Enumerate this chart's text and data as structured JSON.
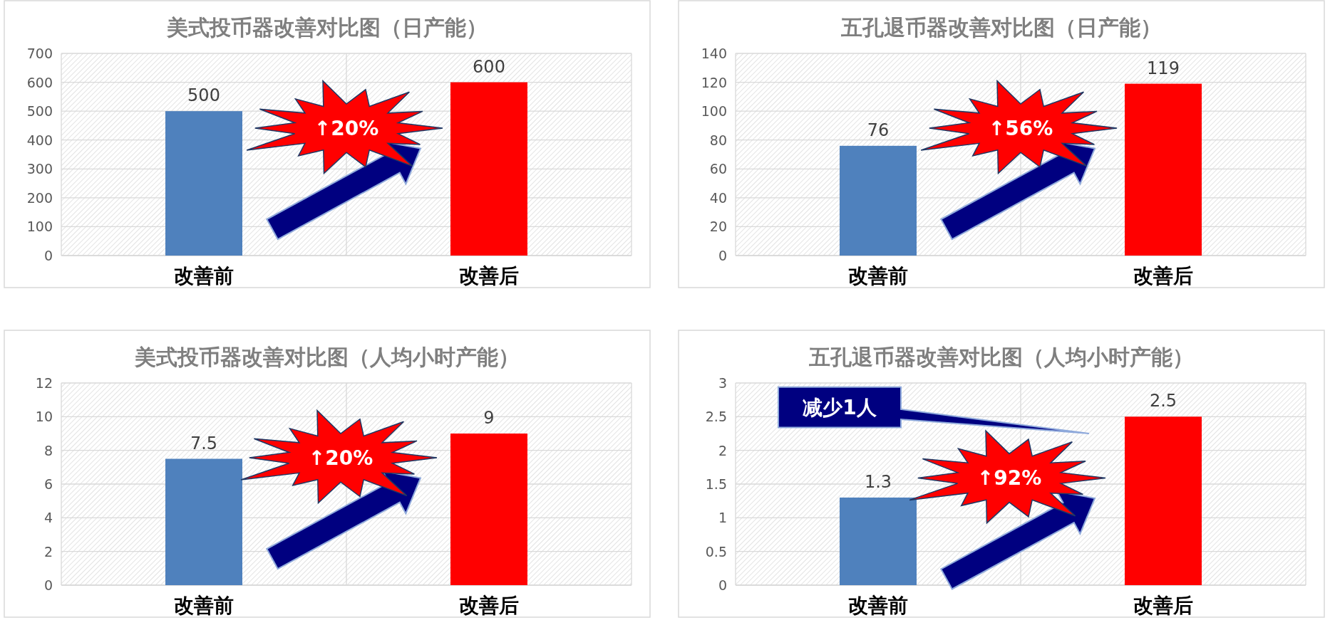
{
  "chart_data": [
    {
      "type": "bar",
      "title": "美式投币器改善对比图（日产能）",
      "categories": [
        "改善前",
        "改善后"
      ],
      "values": [
        500,
        600
      ],
      "colors": [
        "#4f81bd",
        "#ff0000"
      ],
      "ylim": [
        0,
        700
      ],
      "yticks": [
        0,
        100,
        200,
        300,
        400,
        500,
        600,
        700
      ],
      "grid": true,
      "data_labels": true,
      "annotations": [
        "↑20%"
      ]
    },
    {
      "type": "bar",
      "title": "五孔退币器改善对比图（日产能）",
      "categories": [
        "改善前",
        "改善后"
      ],
      "values": [
        76,
        119
      ],
      "colors": [
        "#4f81bd",
        "#ff0000"
      ],
      "ylim": [
        0,
        140
      ],
      "yticks": [
        0,
        20,
        40,
        60,
        80,
        100,
        120,
        140
      ],
      "grid": true,
      "data_labels": true,
      "annotations": [
        "↑56%"
      ]
    },
    {
      "type": "bar",
      "title": "美式投币器改善对比图（人均小时产能）",
      "categories": [
        "改善前",
        "改善后"
      ],
      "values": [
        7.5,
        9
      ],
      "colors": [
        "#4f81bd",
        "#ff0000"
      ],
      "ylim": [
        0,
        12
      ],
      "yticks": [
        0,
        2,
        4,
        6,
        8,
        10,
        12
      ],
      "grid": true,
      "data_labels": true,
      "annotations": [
        "↑20%"
      ]
    },
    {
      "type": "bar",
      "title": "五孔退币器改善对比图（人均小时产能）",
      "categories": [
        "改善前",
        "改善后"
      ],
      "values": [
        1.3,
        2.5
      ],
      "colors": [
        "#4f81bd",
        "#ff0000"
      ],
      "ylim": [
        0,
        3
      ],
      "yticks": [
        0,
        0.5,
        1,
        1.5,
        2,
        2.5,
        3
      ],
      "grid": true,
      "data_labels": true,
      "annotations": [
        "↑92%",
        "减少1人"
      ]
    }
  ]
}
